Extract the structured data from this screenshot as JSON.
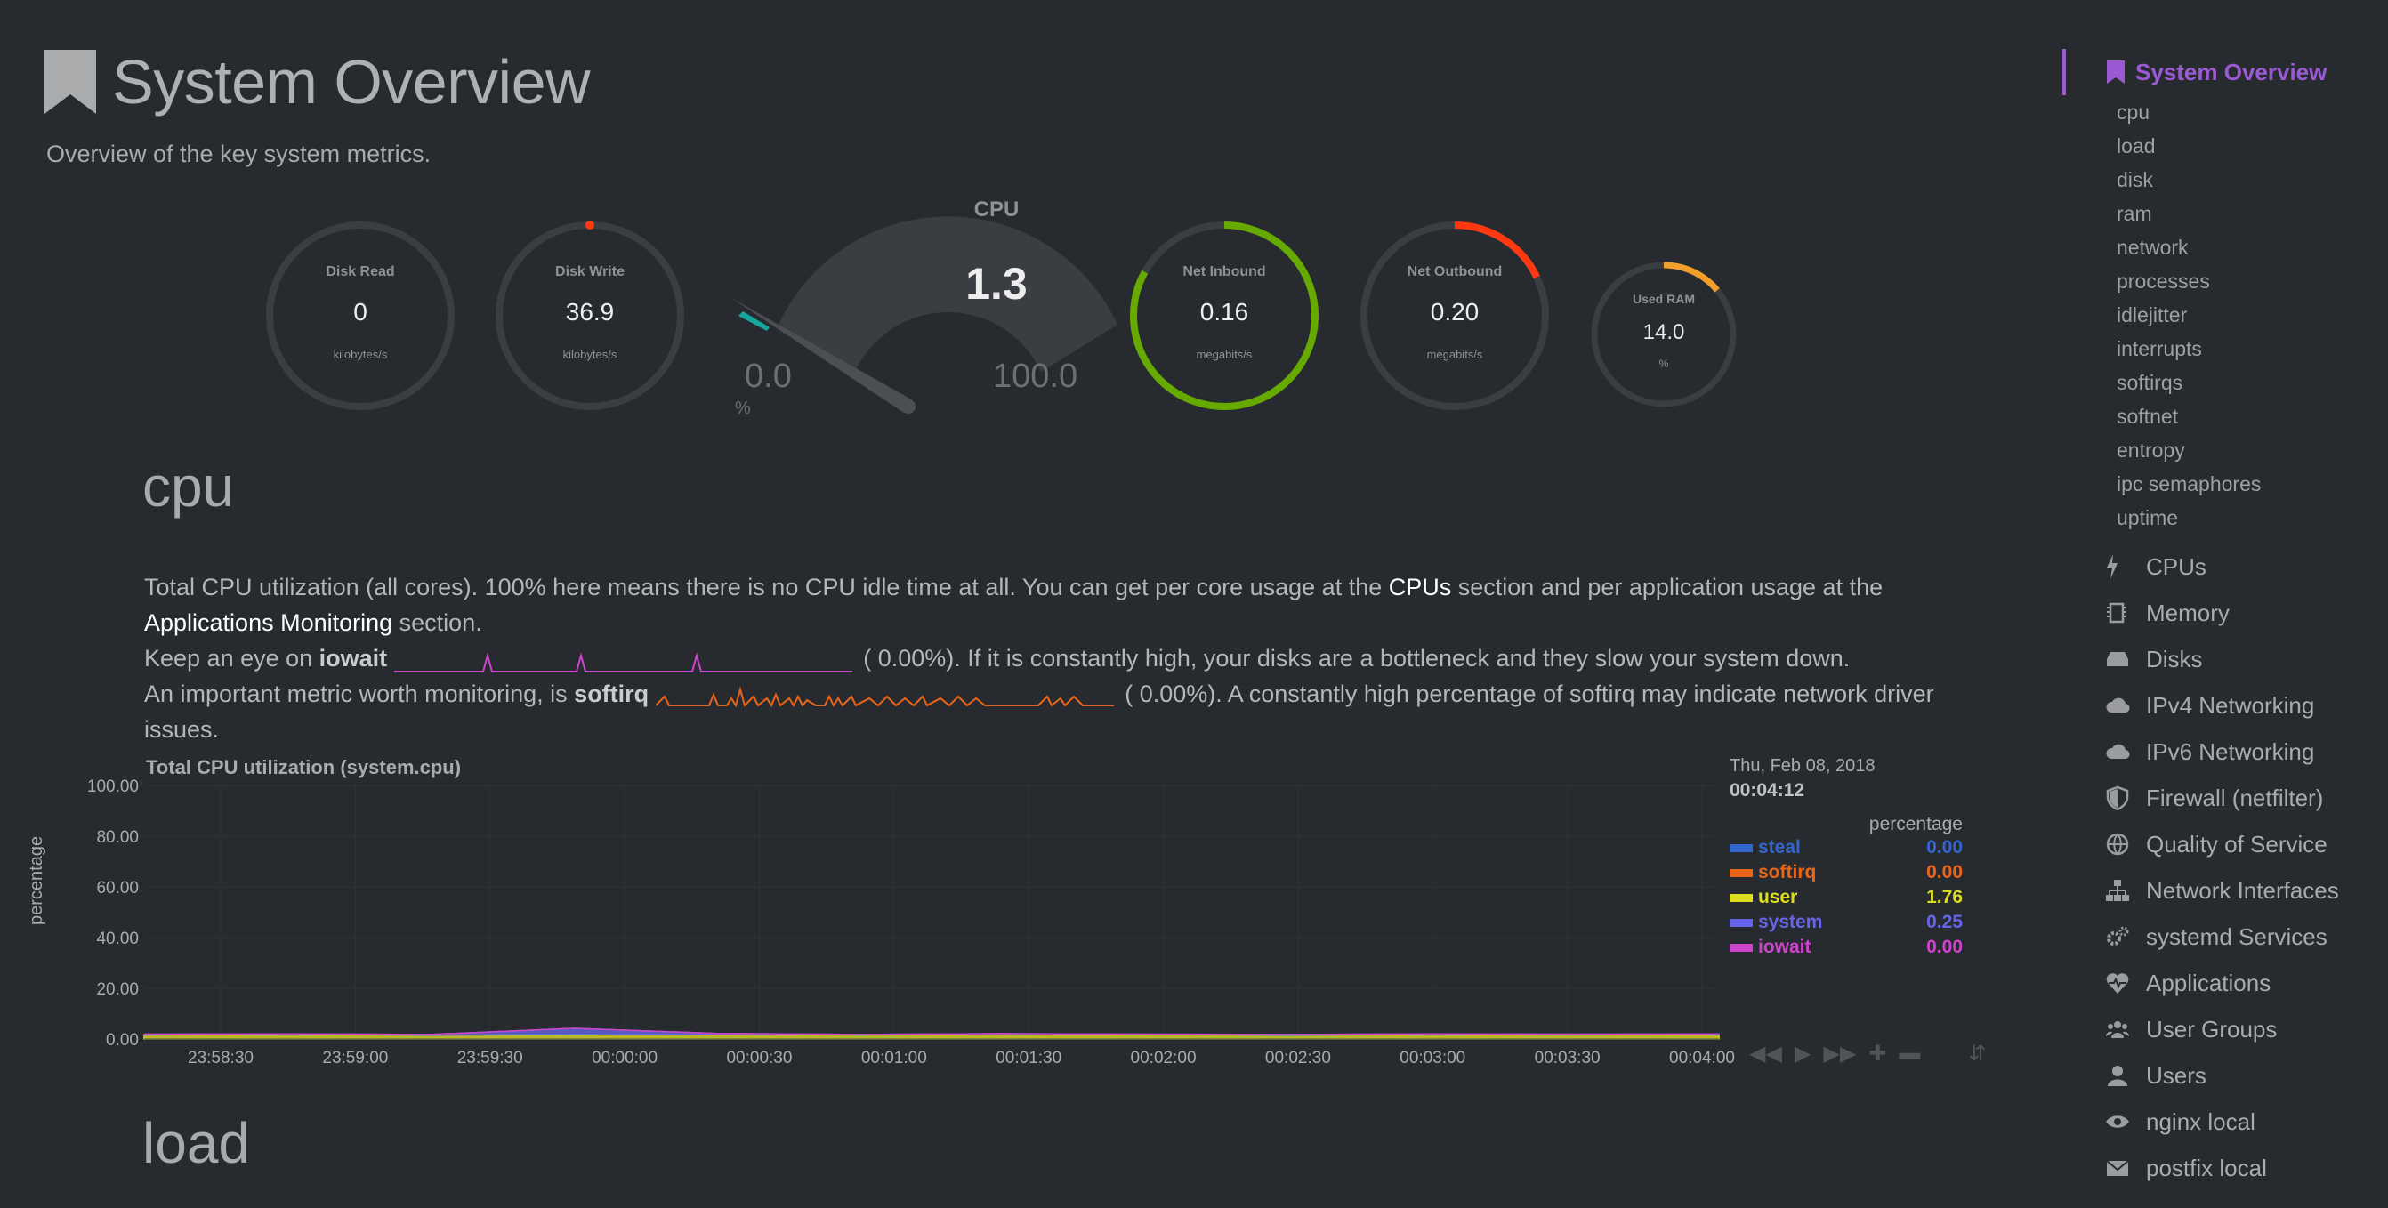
{
  "header": {
    "title": "System Overview",
    "subtitle": "Overview of the key system metrics."
  },
  "gauges": {
    "disk_read": {
      "label": "Disk Read",
      "value": "0",
      "unit": "kilobytes/s",
      "fraction": 0.0
    },
    "disk_write": {
      "label": "Disk Write",
      "value": "36.9",
      "unit": "kilobytes/s",
      "fraction": 0.003
    },
    "cpu": {
      "label": "CPU",
      "value": "1.3",
      "min": "0.0",
      "max": "100.0",
      "unit": "%",
      "fraction": 0.013
    },
    "net_inbound": {
      "label": "Net Inbound",
      "value": "0.16",
      "unit": "megabits/s",
      "fraction": 0.83
    },
    "net_outbound": {
      "label": "Net Outbound",
      "value": "0.20",
      "unit": "megabits/s",
      "fraction": 0.18
    },
    "used_ram": {
      "label": "Used RAM",
      "value": "14.0",
      "unit": "%",
      "fraction": 0.14
    }
  },
  "colors": {
    "accent": "#9b59d4",
    "steal": "#3366cc",
    "softirq": "#e8661a",
    "user": "#dddd22",
    "system": "#6565e6",
    "iowait": "#cc44cc",
    "green": "#66aa00",
    "red": "#fe3912",
    "orange": "#f2a02b"
  },
  "cpu_section": {
    "heading": "cpu",
    "desc_part1": "Total CPU utilization (all cores). 100% here means there is no CPU idle time at all. You can get per core usage at the ",
    "link_cpus": "CPUs",
    "desc_part2": " section and per application usage at the ",
    "link_apps": "Applications Monitoring",
    "desc_part3": " section.",
    "iowait_pre": "Keep an eye on ",
    "iowait_name": "iowait",
    "iowait_val": "(      0.00%). If it is constantly high, your disks are a bottleneck and they slow your system down.",
    "softirq_pre": "An important metric worth monitoring, is ",
    "softirq_name": "softirq",
    "softirq_val": "(      0.00%). A constantly high percentage of softirq may indicate network driver issues."
  },
  "chart": {
    "title": "Total CPU utilization (system.cpu)",
    "ylabel": "percentage",
    "date": "Thu, Feb 08, 2018",
    "time": "00:04:12",
    "legend_title": "percentage",
    "legend": [
      {
        "name": "steal",
        "value": "0.00",
        "color": "#3366cc"
      },
      {
        "name": "softirq",
        "value": "0.00",
        "color": "#e8661a"
      },
      {
        "name": "user",
        "value": "1.76",
        "color": "#dddd22"
      },
      {
        "name": "system",
        "value": "0.25",
        "color": "#6565e6"
      },
      {
        "name": "iowait",
        "value": "0.00",
        "color": "#cc44cc"
      }
    ]
  },
  "chart_data": {
    "type": "area",
    "title": "Total CPU utilization (system.cpu)",
    "ylabel": "percentage",
    "ylim": [
      0,
      100
    ],
    "yticks": [
      "100.00",
      "80.00",
      "60.00",
      "40.00",
      "20.00",
      "0.00"
    ],
    "x": [
      "23:58:30",
      "23:59:00",
      "23:59:30",
      "00:00:00",
      "00:00:30",
      "00:01:00",
      "00:01:30",
      "00:02:00",
      "00:02:30",
      "00:03:00",
      "00:03:30",
      "00:04:00"
    ],
    "series": [
      {
        "name": "user",
        "values": [
          1.6,
          1.8,
          1.5,
          1.7,
          1.9,
          1.6,
          1.8,
          1.7,
          1.5,
          1.8,
          1.6,
          1.76
        ]
      },
      {
        "name": "system",
        "values": [
          0.3,
          0.2,
          0.3,
          2.5,
          0.3,
          0.2,
          0.3,
          0.2,
          0.3,
          0.2,
          0.3,
          0.25
        ]
      },
      {
        "name": "softirq",
        "values": [
          0,
          0,
          0,
          0,
          0,
          0,
          0,
          0,
          0,
          0,
          0,
          0
        ]
      },
      {
        "name": "steal",
        "values": [
          0,
          0,
          0,
          0,
          0,
          0,
          0,
          0,
          0,
          0,
          0,
          0
        ]
      },
      {
        "name": "iowait",
        "values": [
          0,
          0,
          0,
          0,
          0,
          0,
          0,
          0,
          0,
          0,
          0,
          0
        ]
      }
    ],
    "grid": true,
    "legend_position": "right"
  },
  "load_section": {
    "heading": "load"
  },
  "sidebar": {
    "active": "System Overview",
    "sub_items": [
      "cpu",
      "load",
      "disk",
      "ram",
      "network",
      "processes",
      "idlejitter",
      "interrupts",
      "softirqs",
      "softnet",
      "entropy",
      "ipc semaphores",
      "uptime"
    ],
    "sections": [
      {
        "label": "CPUs",
        "icon": "bolt-icon"
      },
      {
        "label": "Memory",
        "icon": "chip-icon"
      },
      {
        "label": "Disks",
        "icon": "hdd-icon"
      },
      {
        "label": "IPv4 Networking",
        "icon": "cloud-icon"
      },
      {
        "label": "IPv6 Networking",
        "icon": "cloud-icon"
      },
      {
        "label": "Firewall (netfilter)",
        "icon": "shield-icon"
      },
      {
        "label": "Quality of Service",
        "icon": "globe-icon"
      },
      {
        "label": "Network Interfaces",
        "icon": "sitemap-icon"
      },
      {
        "label": "systemd Services",
        "icon": "gears-icon"
      },
      {
        "label": "Applications",
        "icon": "heartbeat-icon"
      },
      {
        "label": "User Groups",
        "icon": "users-icon"
      },
      {
        "label": "Users",
        "icon": "user-icon"
      },
      {
        "label": "nginx local",
        "icon": "eye-icon"
      },
      {
        "label": "postfix local",
        "icon": "envelope-icon"
      }
    ]
  }
}
